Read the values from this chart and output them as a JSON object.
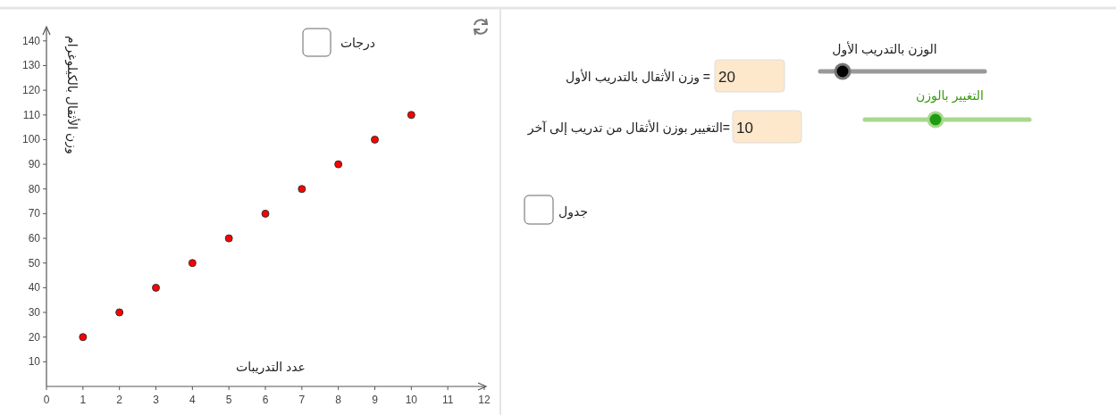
{
  "chart_data": [
    {
      "type": "scatter",
      "xlabel": "عدد التدريبات",
      "ylabel": "وزن الأثقال بالكيلوغرام",
      "x": [
        1,
        2,
        3,
        4,
        5,
        6,
        7,
        8,
        9,
        10
      ],
      "series": [
        {
          "color": "#ff0000",
          "values": [
            20,
            30,
            40,
            50,
            60,
            70,
            80,
            90,
            100,
            110
          ]
        }
      ],
      "xlim": [
        0,
        12
      ],
      "ylim": [
        0,
        145
      ],
      "xticks": [
        0,
        1,
        2,
        3,
        4,
        5,
        6,
        7,
        8,
        9,
        10,
        11,
        12
      ],
      "yticks": [
        10,
        20,
        30,
        40,
        50,
        60,
        70,
        80,
        90,
        100,
        110,
        120,
        130,
        140
      ],
      "marker": "circle",
      "annotations": [
        "درجات"
      ]
    },
    {
      "type": "other",
      "annotations": [
        "الوزن بالتدريب الأول",
        "= وزن الأثقال بالتدريب الأول",
        "20",
        "التغيير بالوزن",
        "=التغيير بوزن الأثقال من تدريب إلى آخر",
        "10",
        "جدول"
      ]
    }
  ]
}
